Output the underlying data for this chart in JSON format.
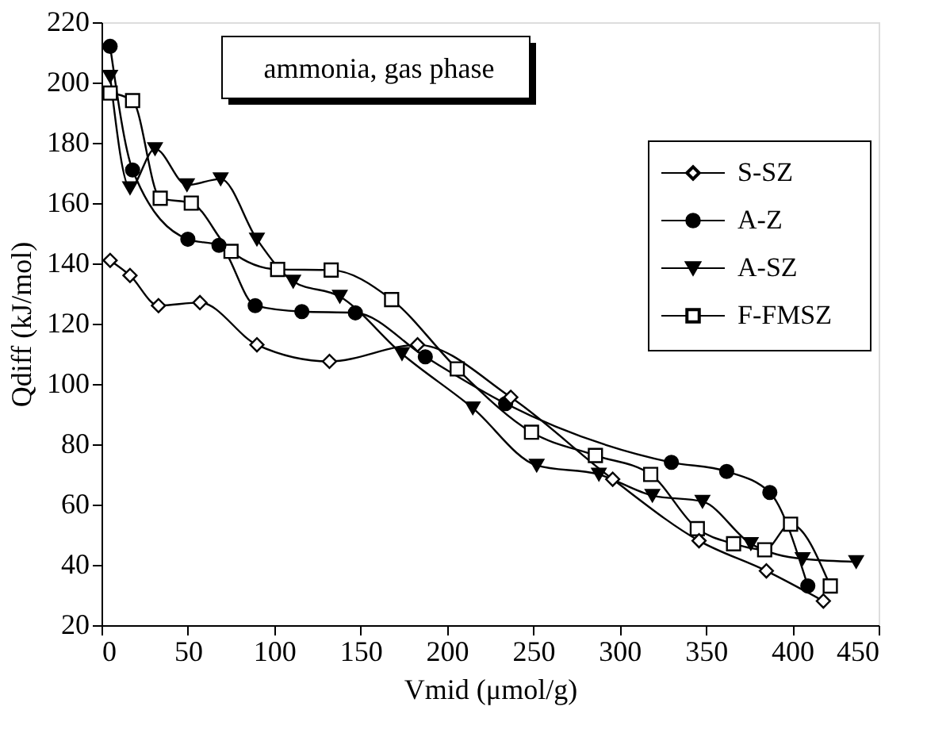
{
  "chart_data": {
    "type": "line",
    "xlabel": "Vmid (μmol/g)",
    "ylabel": "Qdiff (kJ/mol)",
    "annotations": [
      "ammonia, gas phase"
    ],
    "xlim": [
      0,
      450
    ],
    "xticks": [
      0,
      50,
      100,
      150,
      200,
      250,
      300,
      350,
      400,
      450
    ],
    "ylim": [
      20,
      220
    ],
    "yticks": [
      20,
      40,
      60,
      80,
      100,
      120,
      140,
      160,
      180,
      200,
      220
    ],
    "grid": false,
    "legend": "top right",
    "line_style": "solid",
    "series": [
      {
        "name": "S-SZ",
        "color": "#000000",
        "marker": "diamond",
        "x": [
          5,
          16.5,
          33,
          57,
          90,
          132,
          183,
          237,
          296,
          346,
          385,
          418
        ],
        "values": [
          141,
          136,
          126,
          127,
          113,
          107.5,
          113,
          95.6,
          68.4,
          48,
          38,
          28
        ]
      },
      {
        "name": "A-Z",
        "color": "#000000",
        "marker": "circle",
        "x": [
          5,
          18,
          50,
          68,
          89,
          116,
          147,
          187.5,
          234,
          330,
          362,
          387,
          409
        ],
        "values": [
          212,
          171,
          148,
          146,
          126,
          124,
          123.6,
          109,
          93.5,
          74,
          71,
          64,
          33
        ]
      },
      {
        "name": "A-SZ",
        "color": "#000000",
        "marker": "triangle",
        "x": [
          5,
          16.5,
          31,
          49.5,
          69,
          90,
          111,
          138,
          174,
          215,
          252,
          288,
          319,
          348,
          376,
          406,
          437
        ],
        "values": [
          202,
          165,
          178,
          166,
          168,
          148,
          134,
          129,
          110,
          92,
          73,
          70,
          63,
          61,
          47,
          42,
          41
        ]
      },
      {
        "name": "F-FMSZ",
        "color": "#000000",
        "marker": "square",
        "x": [
          5,
          18,
          34,
          52,
          75,
          102,
          133,
          168,
          206,
          249,
          286,
          318,
          345,
          366,
          384,
          399,
          422
        ],
        "values": [
          196.5,
          194,
          161.6,
          160,
          144,
          138,
          137.8,
          128,
          105,
          84,
          76.3,
          70,
          52,
          47,
          45,
          53.5,
          33
        ]
      }
    ]
  }
}
